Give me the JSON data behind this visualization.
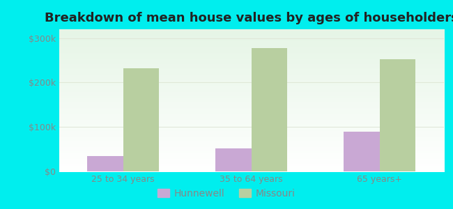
{
  "title": "Breakdown of mean house values by ages of householders",
  "categories": [
    "25 to 34 years",
    "35 to 64 years",
    "65 years+"
  ],
  "hunnewell_values": [
    35000,
    52000,
    90000
  ],
  "missouri_values": [
    232000,
    278000,
    252000
  ],
  "ylim": [
    0,
    320000
  ],
  "yticks": [
    0,
    100000,
    200000,
    300000
  ],
  "ytick_labels": [
    "$0",
    "$100k",
    "$200k",
    "$300k"
  ],
  "hunnewell_color": "#c9a8d4",
  "missouri_color": "#b8cfa0",
  "background_color": "#00eeee",
  "bar_width": 0.28,
  "legend_labels": [
    "Hunnewell",
    "Missouri"
  ],
  "title_fontsize": 13,
  "tick_fontsize": 9,
  "legend_fontsize": 10,
  "tick_color": "#888888",
  "grid_color": "#e0e8d8"
}
